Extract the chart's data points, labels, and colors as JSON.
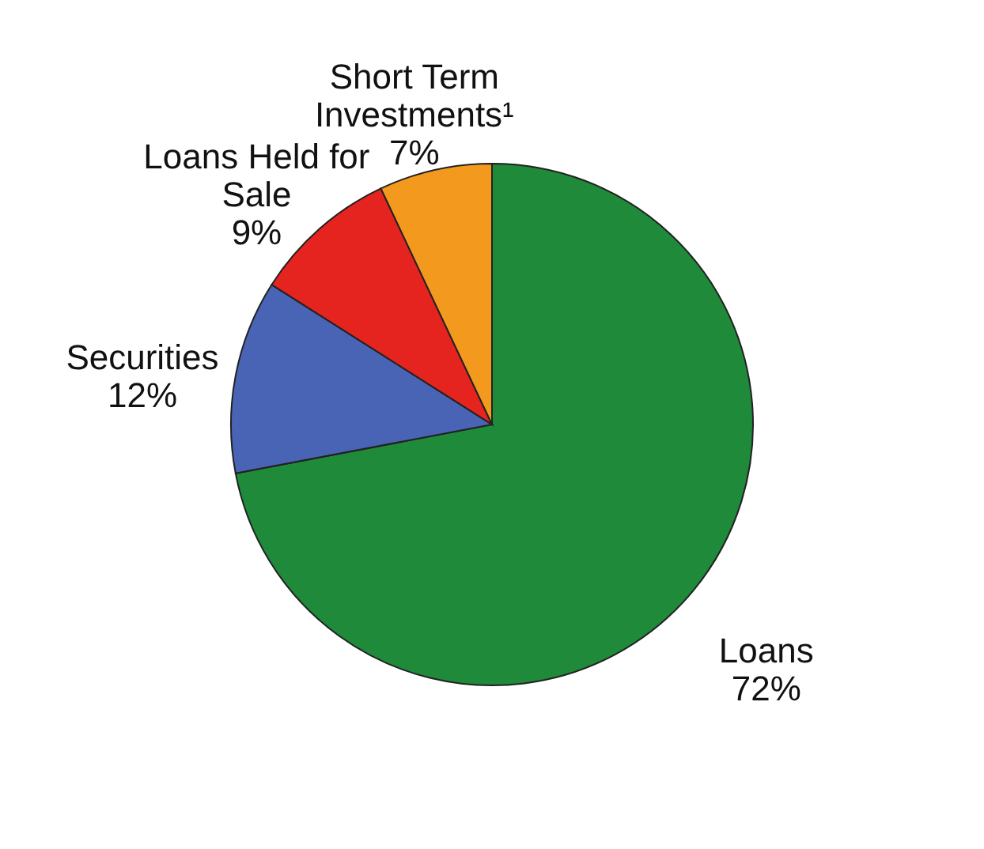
{
  "chart_data": {
    "type": "pie",
    "categories": [
      "Loans",
      "Securities",
      "Loans Held for\nSale",
      "Short Term\nInvestments¹"
    ],
    "values": [
      72,
      12,
      9,
      7
    ],
    "colors": [
      "#1e8a3a",
      "#4a64b5",
      "#e5231f",
      "#f39a1e"
    ],
    "value_labels": [
      "72%",
      "12%",
      "9%",
      "7%"
    ]
  }
}
